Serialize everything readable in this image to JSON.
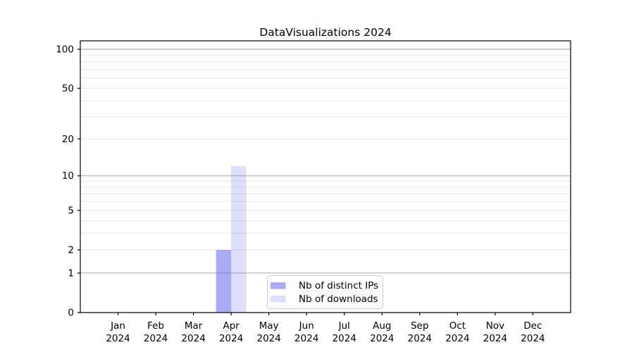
{
  "chart_data": {
    "type": "bar",
    "title": "DataVisualizations 2024",
    "categories": [
      "Jan",
      "Feb",
      "Mar",
      "Apr",
      "May",
      "Jun",
      "Jul",
      "Aug",
      "Sep",
      "Oct",
      "Nov",
      "Dec"
    ],
    "category_sublabel": "2024",
    "series": [
      {
        "name": "Nb of distinct IPs",
        "color": "rgba(85,85,240,0.50)",
        "approx_hex_on_white": "#aaaaf8",
        "values": [
          0,
          0,
          0,
          2,
          0,
          0,
          0,
          0,
          0,
          0,
          0,
          0
        ]
      },
      {
        "name": "Nb of downloads",
        "color": "rgba(85,85,240,0.20)",
        "approx_hex_on_white": "#dcdcf8",
        "values": [
          0,
          0,
          0,
          12,
          0,
          0,
          0,
          0,
          0,
          0,
          0,
          0
        ]
      }
    ],
    "xlabel": "",
    "ylabel": "",
    "y_scale": "log1p",
    "y_ticks": [
      0,
      1,
      2,
      5,
      10,
      20,
      50,
      100
    ],
    "y_major_gridlines": [
      1,
      10,
      100
    ],
    "y_minor_gridlines": [
      2,
      3,
      4,
      5,
      6,
      7,
      8,
      9,
      20,
      30,
      40,
      50,
      60,
      70,
      80,
      90
    ],
    "ylim": [
      0,
      115
    ],
    "grid": "horizontal",
    "legend_position": "lower center"
  },
  "colors": {
    "major_grid": "#b3b3b3",
    "minor_grid": "#e8e8e8",
    "axis": "#000000",
    "legend_border": "#cccccc",
    "legend_bg": "rgba(255,255,255,0.85)"
  }
}
